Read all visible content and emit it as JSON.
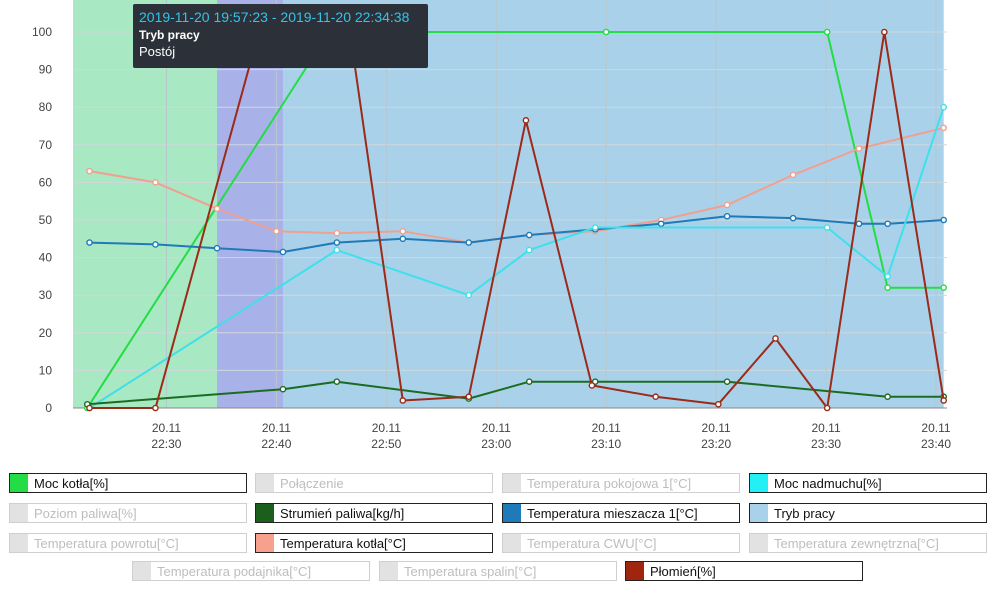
{
  "chart_data": {
    "type": "line",
    "x_ticks": [
      "20.11\n22:30",
      "20.11\n22:40",
      "20.11\n22:50",
      "20.11\n23:00",
      "20.11\n23:10",
      "20.11\n23:20",
      "20.11\n23:30",
      "20.11\n23:40"
    ],
    "x_tick_minutes": [
      30,
      40,
      50,
      60,
      70,
      80,
      90,
      100
    ],
    "y_ticks": [
      0,
      10,
      20,
      30,
      40,
      50,
      60,
      70,
      80,
      90,
      100
    ],
    "ylim": [
      0,
      100
    ],
    "xlim_minutes": [
      21.5,
      101
    ],
    "bands": [
      {
        "from": 21.5,
        "to": 34.6,
        "color": "#a8e8c2"
      },
      {
        "from": 34.6,
        "to": 40.6,
        "color": "#a8b2e8"
      },
      {
        "from": 40.6,
        "to": 100.7,
        "color": "#a9d2ea"
      }
    ],
    "series": [
      {
        "name": "Moc kotła[%]",
        "color": "#22dd44",
        "points": [
          [
            22.8,
            0
          ],
          [
            44.8,
            100
          ],
          [
            70,
            100
          ],
          [
            90.1,
            100
          ],
          [
            95.6,
            32
          ],
          [
            100.7,
            32
          ]
        ]
      },
      {
        "name": "Temperatura kotła[°C]",
        "color": "#f0a090",
        "points": [
          [
            23,
            63
          ],
          [
            29,
            60
          ],
          [
            34.6,
            53
          ],
          [
            40,
            47
          ],
          [
            45.5,
            46.5
          ],
          [
            51.5,
            47
          ],
          [
            57.5,
            44
          ],
          [
            63,
            46
          ],
          [
            69,
            47
          ],
          [
            75,
            50
          ],
          [
            81,
            54
          ],
          [
            87,
            62
          ],
          [
            93,
            69
          ],
          [
            100.7,
            74.5
          ]
        ]
      },
      {
        "name": "Temperatura mieszacza 1[°C]",
        "color": "#1e7ab8",
        "points": [
          [
            23,
            44
          ],
          [
            29,
            43.5
          ],
          [
            34.6,
            42.5
          ],
          [
            40.6,
            41.5
          ],
          [
            45.5,
            44
          ],
          [
            51.5,
            45
          ],
          [
            57.5,
            44
          ],
          [
            63,
            46
          ],
          [
            69,
            47.5
          ],
          [
            75,
            49
          ],
          [
            81,
            51
          ],
          [
            87,
            50.5
          ],
          [
            93,
            49
          ],
          [
            95.6,
            49
          ],
          [
            100.7,
            50
          ]
        ]
      },
      {
        "name": "Moc nadmuchu[%]",
        "color": "#3ee0ea",
        "points": [
          [
            23,
            0
          ],
          [
            45.5,
            42
          ],
          [
            57.5,
            30
          ],
          [
            63,
            42
          ],
          [
            69,
            48
          ],
          [
            90.1,
            48
          ],
          [
            95.6,
            35
          ],
          [
            100.7,
            80
          ]
        ]
      },
      {
        "name": "Strumień paliwa[kg/h]",
        "color": "#1c6b22",
        "points": [
          [
            22.8,
            1
          ],
          [
            40.6,
            5
          ],
          [
            45.5,
            7
          ],
          [
            57.5,
            2.5
          ],
          [
            63,
            7
          ],
          [
            69,
            7
          ],
          [
            81,
            7
          ],
          [
            95.6,
            3
          ],
          [
            100.7,
            3
          ]
        ]
      },
      {
        "name": "Płomień[%]",
        "color": "#9b2a18",
        "points": [
          [
            23,
            0
          ],
          [
            29,
            0
          ],
          [
            38.4,
            100
          ],
          [
            46.7,
            100
          ],
          [
            51.5,
            2
          ],
          [
            57.5,
            3
          ],
          [
            62.7,
            76.5
          ],
          [
            68.7,
            6
          ],
          [
            74.5,
            3
          ],
          [
            80.2,
            1
          ],
          [
            85.4,
            18.5
          ],
          [
            90.1,
            0
          ],
          [
            95.3,
            100
          ],
          [
            100.7,
            2
          ]
        ]
      }
    ],
    "legend": [
      {
        "label": "Moc kotła[%]",
        "color": "#22dd44",
        "active": true
      },
      {
        "label": "Połączenie",
        "color": "#e2e2e2",
        "active": false
      },
      {
        "label": "Temperatura pokojowa 1[°C]",
        "color": "#e2e2e2",
        "active": false
      },
      {
        "label": "Moc nadmuchu[%]",
        "color": "#22f0f4",
        "active": true
      },
      {
        "label": "Poziom paliwa[%]",
        "color": "#e2e2e2",
        "active": false
      },
      {
        "label": "Strumień paliwa[kg/h]",
        "color": "#1c5e1c",
        "active": true
      },
      {
        "label": "Temperatura mieszacza 1[°C]",
        "color": "#1e7ab8",
        "active": true
      },
      {
        "label": "Tryb pracy",
        "color": "#a9d2ea",
        "active": true
      },
      {
        "label": "Temperatura powrotu[°C]",
        "color": "#e2e2e2",
        "active": false
      },
      {
        "label": "Temperatura kotła[°C]",
        "color": "#f7a08e",
        "active": true
      },
      {
        "label": "Temperatura CWU[°C]",
        "color": "#e2e2e2",
        "active": false
      },
      {
        "label": "Temperatura zewnętrzna[°C]",
        "color": "#e2e2e2",
        "active": false
      },
      {
        "label": "Temperatura podajnika[°C]",
        "color": "#e2e2e2",
        "active": false
      },
      {
        "label": "Temperatura spalin[°C]",
        "color": "#e2e2e2",
        "active": false
      },
      {
        "label": "Płomień[%]",
        "color": "#a0250e",
        "active": true
      }
    ]
  },
  "tooltip": {
    "range": "2019-11-20 19:57:23 - 2019-11-20 22:34:38",
    "title": "Tryb pracy",
    "value": "Postój"
  }
}
